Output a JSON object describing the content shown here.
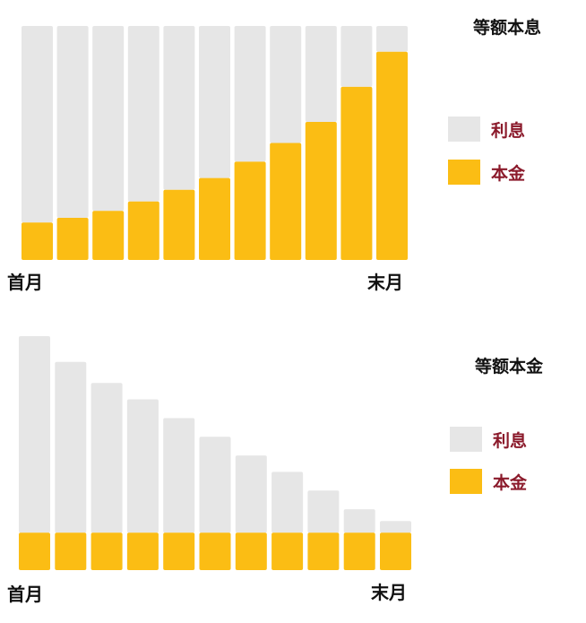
{
  "colors": {
    "interest": "#e6e6e6",
    "principal": "#fbbd14",
    "legend_text": "#8b1a2b"
  },
  "chart_data": [
    {
      "type": "bar",
      "stacked": true,
      "title": "等额本息",
      "categories_count": 11,
      "x_tick_labels": [
        "首月",
        "末月"
      ],
      "legend": [
        "利息",
        "本金"
      ],
      "legend_placement": "right",
      "grid": false,
      "units": "relative (share of monthly payment, %)",
      "series": [
        {
          "name": "本金",
          "values": [
            16,
            18,
            21,
            25,
            30,
            35,
            42,
            50,
            59,
            74,
            89
          ]
        },
        {
          "name": "利息",
          "values": [
            84,
            82,
            79,
            75,
            70,
            65,
            58,
            50,
            41,
            26,
            11
          ]
        }
      ]
    },
    {
      "type": "bar",
      "stacked": true,
      "title": "等额本金",
      "categories_count": 11,
      "x_tick_labels": [
        "首月",
        "末月"
      ],
      "legend": [
        "利息",
        "本金"
      ],
      "legend_placement": "right",
      "grid": false,
      "units": "relative",
      "series": [
        {
          "name": "本金",
          "values": [
            16,
            16,
            16,
            16,
            16,
            16,
            16,
            16,
            16,
            16,
            16
          ]
        },
        {
          "name": "利息",
          "values": [
            84,
            73,
            64,
            57,
            49,
            41,
            33,
            26,
            18,
            10,
            5
          ]
        }
      ]
    }
  ]
}
